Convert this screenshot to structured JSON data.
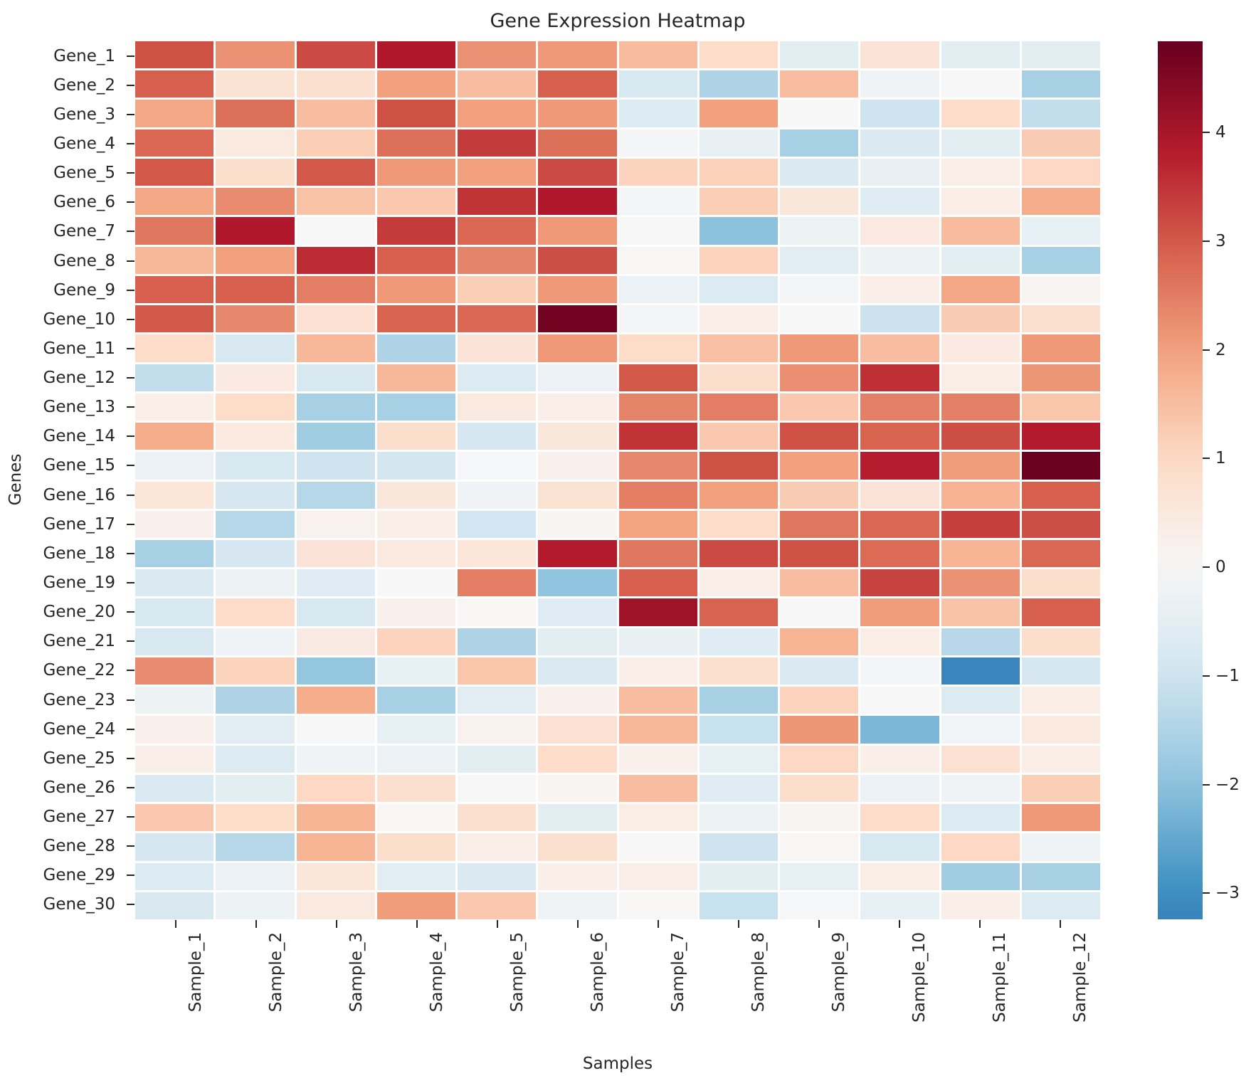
{
  "title": "Gene Expression Heatmap",
  "xlabel": "Samples",
  "ylabel": "Genes",
  "chart_data": {
    "type": "heatmap",
    "title": "Gene Expression Heatmap",
    "xlabel": "Samples",
    "ylabel": "Genes",
    "x_categories": [
      "Sample_1",
      "Sample_2",
      "Sample_3",
      "Sample_4",
      "Sample_5",
      "Sample_6",
      "Sample_7",
      "Sample_8",
      "Sample_9",
      "Sample_10",
      "Sample_11",
      "Sample_12"
    ],
    "y_categories": [
      "Gene_1",
      "Gene_2",
      "Gene_3",
      "Gene_4",
      "Gene_5",
      "Gene_6",
      "Gene_7",
      "Gene_8",
      "Gene_9",
      "Gene_10",
      "Gene_11",
      "Gene_12",
      "Gene_13",
      "Gene_14",
      "Gene_15",
      "Gene_16",
      "Gene_17",
      "Gene_18",
      "Gene_19",
      "Gene_20",
      "Gene_21",
      "Gene_22",
      "Gene_23",
      "Gene_24",
      "Gene_25",
      "Gene_26",
      "Gene_27",
      "Gene_28",
      "Gene_29",
      "Gene_30"
    ],
    "values": [
      [
        3.1,
        2.2,
        3.2,
        3.9,
        2.2,
        2.1,
        1.55,
        0.9,
        -0.5,
        0.65,
        -0.5,
        -0.5
      ],
      [
        2.9,
        0.7,
        0.8,
        2.0,
        1.5,
        2.9,
        -0.8,
        -1.5,
        1.5,
        -0.2,
        0.0,
        -1.6
      ],
      [
        1.9,
        2.7,
        1.5,
        3.1,
        2.0,
        2.1,
        -0.65,
        2.0,
        0.0,
        -1.0,
        0.9,
        -1.2
      ],
      [
        2.8,
        0.5,
        1.2,
        2.7,
        3.4,
        2.7,
        -0.1,
        -0.35,
        -1.6,
        -0.75,
        -0.5,
        1.25
      ],
      [
        3.0,
        0.85,
        3.0,
        2.1,
        2.0,
        3.2,
        1.1,
        1.15,
        -0.75,
        -0.35,
        0.3,
        1.0
      ],
      [
        1.9,
        2.3,
        1.4,
        1.3,
        3.5,
        3.9,
        -0.1,
        1.2,
        0.55,
        -0.6,
        0.35,
        1.8
      ],
      [
        2.6,
        3.9,
        0.0,
        3.4,
        2.8,
        2.1,
        0.0,
        -2.0,
        -0.25,
        0.45,
        1.55,
        -0.4
      ],
      [
        1.6,
        2.0,
        3.6,
        2.9,
        2.4,
        3.15,
        0.05,
        1.1,
        -0.55,
        -0.25,
        -0.5,
        -1.6
      ],
      [
        2.9,
        2.9,
        2.5,
        2.1,
        1.2,
        2.1,
        -0.3,
        -0.7,
        -0.1,
        0.3,
        1.9,
        0.1
      ],
      [
        3.0,
        2.35,
        0.75,
        2.85,
        2.8,
        4.7,
        -0.1,
        0.3,
        0.0,
        -1.05,
        1.25,
        0.8
      ],
      [
        0.9,
        -0.8,
        1.6,
        -1.5,
        0.65,
        2.1,
        0.95,
        1.45,
        2.1,
        1.5,
        0.45,
        2.1
      ],
      [
        -1.2,
        0.45,
        -0.8,
        1.6,
        -0.7,
        -0.3,
        3.0,
        0.85,
        2.25,
        3.55,
        0.35,
        2.15
      ],
      [
        0.3,
        0.95,
        -1.6,
        -1.6,
        0.5,
        0.3,
        2.4,
        2.5,
        1.3,
        2.45,
        2.45,
        1.35
      ],
      [
        1.8,
        0.5,
        -1.7,
        0.85,
        -0.85,
        0.55,
        3.5,
        1.3,
        3.1,
        2.85,
        3.15,
        3.85
      ],
      [
        -0.3,
        -0.8,
        -1.0,
        -0.9,
        -0.05,
        0.25,
        2.35,
        3.1,
        2.0,
        3.8,
        2.05,
        4.8
      ],
      [
        0.6,
        -0.85,
        -1.4,
        0.55,
        -0.2,
        0.7,
        2.5,
        2.0,
        1.25,
        0.65,
        1.7,
        2.9
      ],
      [
        0.25,
        -1.4,
        0.2,
        0.3,
        -0.95,
        0.1,
        1.95,
        0.9,
        2.6,
        2.8,
        3.35,
        3.15
      ],
      [
        -1.6,
        -0.85,
        0.65,
        0.5,
        0.6,
        3.85,
        2.6,
        3.2,
        3.1,
        2.75,
        1.65,
        2.8
      ],
      [
        -0.75,
        -0.25,
        -0.6,
        0.0,
        2.5,
        -1.95,
        2.9,
        0.3,
        1.5,
        3.3,
        2.2,
        0.85
      ],
      [
        -0.8,
        0.9,
        -0.8,
        0.25,
        0.05,
        -0.6,
        4.1,
        2.85,
        0.0,
        2.05,
        1.4,
        2.9
      ],
      [
        -0.8,
        -0.2,
        0.4,
        1.1,
        -1.5,
        -0.5,
        -0.35,
        -0.6,
        1.65,
        0.35,
        -1.35,
        0.85
      ],
      [
        2.3,
        1.1,
        -1.9,
        -0.4,
        1.35,
        -0.75,
        0.3,
        0.8,
        -0.75,
        -0.1,
        -3.2,
        -0.85
      ],
      [
        -0.25,
        -1.5,
        1.8,
        -1.6,
        -0.55,
        0.25,
        1.5,
        -1.6,
        1.1,
        0.0,
        -0.7,
        0.35
      ],
      [
        0.25,
        -0.55,
        0.0,
        -0.4,
        0.2,
        0.75,
        1.6,
        -1.1,
        2.15,
        -2.2,
        -0.15,
        0.5
      ],
      [
        0.3,
        -0.7,
        -0.2,
        -0.3,
        -0.5,
        0.9,
        0.25,
        -0.45,
        1.0,
        0.3,
        0.75,
        0.35
      ],
      [
        -0.75,
        -0.5,
        1.0,
        0.8,
        0.0,
        0.1,
        1.5,
        -0.6,
        0.85,
        -0.3,
        -0.2,
        1.2
      ],
      [
        1.3,
        0.95,
        1.65,
        0.05,
        0.8,
        -0.5,
        0.35,
        -0.25,
        0.1,
        0.9,
        -0.7,
        2.1
      ],
      [
        -0.85,
        -1.4,
        1.65,
        0.85,
        0.3,
        0.8,
        0.0,
        -1.0,
        0.05,
        -0.8,
        1.0,
        -0.2
      ],
      [
        -0.7,
        -0.3,
        0.6,
        -0.55,
        -0.75,
        0.3,
        0.3,
        -0.5,
        -0.45,
        0.35,
        -1.7,
        -1.6
      ],
      [
        -0.8,
        -0.25,
        0.5,
        2.05,
        1.3,
        -0.2,
        0.05,
        -1.1,
        -0.05,
        -0.4,
        0.3,
        -0.7
      ]
    ],
    "vmin": -3.24,
    "vmax": 4.84,
    "center": 0,
    "colormap": "RdBu_r",
    "colormap_anchors": [
      [
        0.0,
        5,
        48,
        97
      ],
      [
        0.1,
        33,
        102,
        172
      ],
      [
        0.2,
        67,
        147,
        195
      ],
      [
        0.3,
        146,
        197,
        222
      ],
      [
        0.4,
        209,
        229,
        240
      ],
      [
        0.5,
        247,
        247,
        247
      ],
      [
        0.6,
        253,
        219,
        199
      ],
      [
        0.7,
        244,
        165,
        130
      ],
      [
        0.8,
        214,
        96,
        77
      ],
      [
        0.9,
        178,
        24,
        43
      ],
      [
        1.0,
        103,
        0,
        31
      ]
    ],
    "grid_color": "#ffffff",
    "colorbar_ticks": [
      4,
      3,
      2,
      1,
      0,
      -1,
      -2,
      -3
    ],
    "legend_position": "right"
  }
}
